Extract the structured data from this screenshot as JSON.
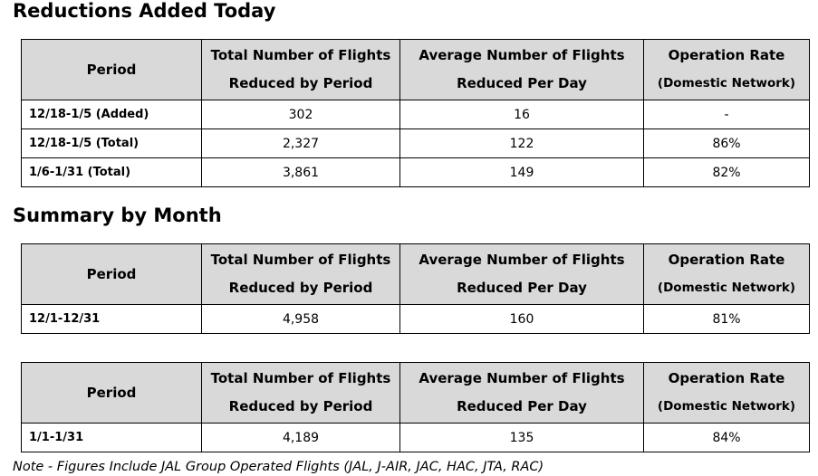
{
  "sections": [
    {
      "title": "Reductions Added Today",
      "tables": [
        {
          "header": [
            [
              "Period"
            ],
            [
              "Total Number of Flights",
              "Reduced by Period"
            ],
            [
              "Average Number of Flights",
              "Reduced Per Day"
            ],
            [
              "Operation Rate",
              "(Domestic Network)"
            ]
          ],
          "rows": [
            [
              "12/18-1/5 (Added)",
              "302",
              "16",
              "-"
            ],
            [
              "12/18-1/5 (Total)",
              "2,327",
              "122",
              "86%"
            ],
            [
              "1/6-1/31 (Total)",
              "3,861",
              "149",
              "82%"
            ]
          ]
        }
      ]
    },
    {
      "title": "Summary by Month",
      "tables": [
        {
          "header": [
            [
              "Period"
            ],
            [
              "Total Number of Flights",
              "Reduced by Period"
            ],
            [
              "Average Number of Flights",
              "Reduced Per Day"
            ],
            [
              "Operation Rate",
              "(Domestic Network)"
            ]
          ],
          "rows": [
            [
              "12/1-12/31",
              "4,958",
              "160",
              "81%"
            ]
          ]
        },
        {
          "header": [
            [
              "Period"
            ],
            [
              "Total Number of Flights",
              "Reduced by Period"
            ],
            [
              "Average Number of Flights",
              "Reduced Per Day"
            ],
            [
              "Operation Rate",
              "(Domestic Network)"
            ]
          ],
          "rows": [
            [
              "1/1-1/31",
              "4,189",
              "135",
              "84%"
            ]
          ]
        }
      ]
    }
  ],
  "note": "Note - Figures Include JAL Group Operated Flights (JAL, J-AIR, JAC, HAC, JTA, RAC)"
}
